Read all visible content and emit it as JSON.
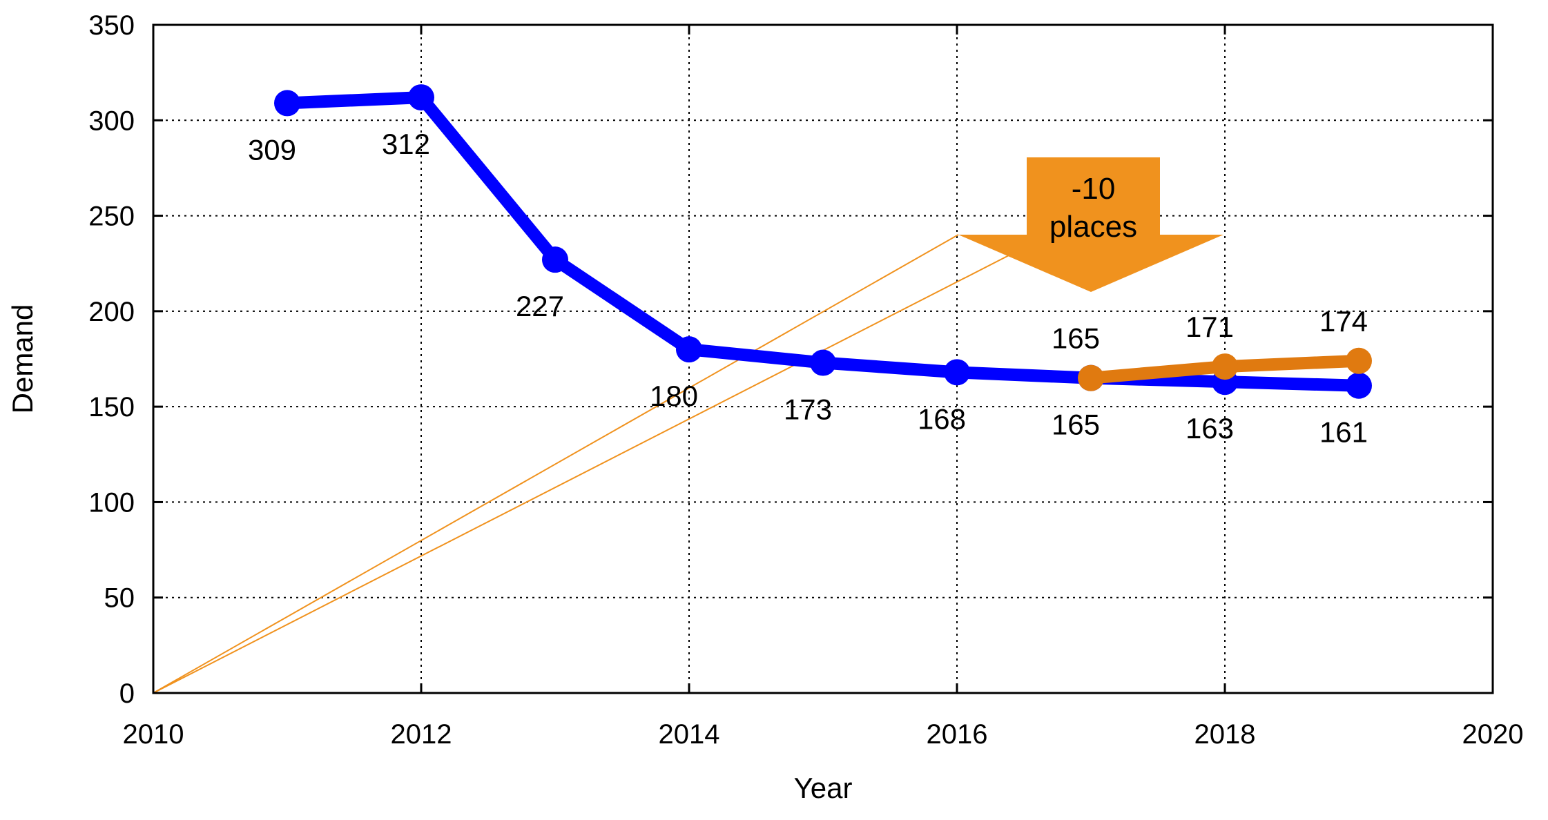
{
  "chart_data": {
    "type": "line",
    "xlabel": "Year",
    "ylabel": "Demand",
    "xlim": [
      2010,
      2020
    ],
    "ylim": [
      0,
      350
    ],
    "xticks": [
      "2010",
      "2012",
      "2014",
      "2016",
      "2018",
      "2020"
    ],
    "yticks": [
      "0",
      "50",
      "100",
      "150",
      "200",
      "250",
      "300",
      "350"
    ],
    "grid": true,
    "legend": "none",
    "series": [
      {
        "color": "#0000ff",
        "x": [
          2011,
          2012,
          2013,
          2014,
          2015,
          2016,
          2017,
          2018,
          2019
        ],
        "values": [
          309,
          312,
          227,
          180,
          173,
          168,
          165,
          163,
          161
        ],
        "labels": [
          "309",
          "312",
          "227",
          "180",
          "173",
          "168",
          "165",
          "163",
          "161"
        ],
        "label_position": "below"
      },
      {
        "color": "#e07a10",
        "x": [
          2017,
          2018,
          2019
        ],
        "values": [
          165,
          171,
          174
        ],
        "labels": [
          "165",
          "171",
          "174"
        ],
        "label_position": "above"
      }
    ],
    "annotation": {
      "text_line1": "-10",
      "text_line2": "places",
      "color": "#f0921e",
      "shape": "down-arrow"
    }
  }
}
